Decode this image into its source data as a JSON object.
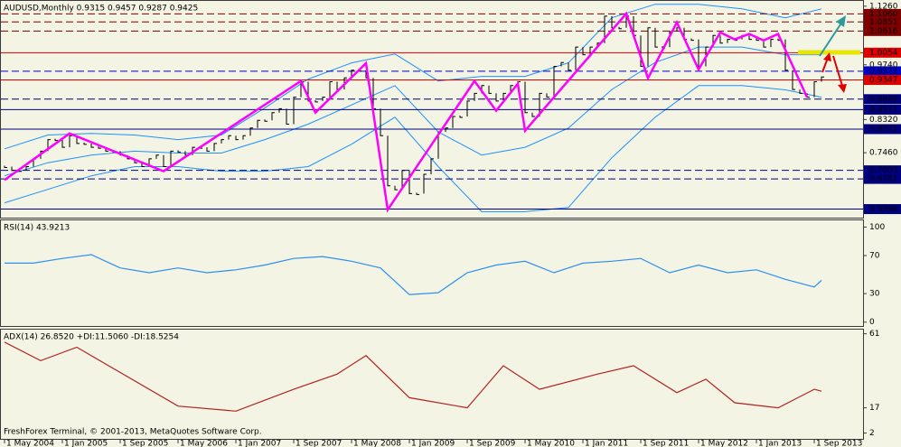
{
  "chart_data": [
    {
      "type": "ohlc",
      "title": "AUDUSD,Monthly 0.9315 0.9457 0.9287 0.9425",
      "color": "#000000",
      "x": [
        "2004-05-01",
        "2004-06-01",
        "2004-07-01",
        "2004-08-01",
        "2004-09-01",
        "2004-10-01",
        "2004-11-01",
        "2004-12-01",
        "2005-01-01",
        "2005-02-01",
        "2005-03-01",
        "2005-04-01",
        "2005-05-01",
        "2005-06-01",
        "2005-07-01",
        "2005-08-01",
        "2005-09-01",
        "2005-10-01",
        "2005-11-01",
        "2005-12-01",
        "2006-01-01",
        "2006-02-01",
        "2006-03-01",
        "2006-04-01",
        "2006-05-01",
        "2006-06-01",
        "2006-07-01",
        "2006-08-01",
        "2006-09-01",
        "2006-10-01",
        "2006-11-01",
        "2006-12-01",
        "2007-01-01",
        "2007-02-01",
        "2007-03-01",
        "2007-04-01",
        "2007-05-01",
        "2007-06-01",
        "2007-07-01",
        "2007-08-01",
        "2007-09-01",
        "2007-10-01",
        "2007-11-01",
        "2007-12-01",
        "2008-01-01",
        "2008-02-01",
        "2008-03-01",
        "2008-04-01",
        "2008-05-01",
        "2008-06-01",
        "2008-07-01",
        "2008-08-01",
        "2008-09-01",
        "2008-10-01",
        "2008-11-01",
        "2008-12-01",
        "2009-01-01",
        "2009-02-01",
        "2009-03-01",
        "2009-04-01",
        "2009-05-01",
        "2009-06-01",
        "2009-07-01",
        "2009-08-01",
        "2009-09-01",
        "2009-10-01",
        "2009-11-01",
        "2009-12-01",
        "2010-01-01",
        "2010-02-01",
        "2010-03-01",
        "2010-04-01",
        "2010-05-01",
        "2010-06-01",
        "2010-07-01",
        "2010-08-01",
        "2010-09-01",
        "2010-10-01",
        "2010-11-01",
        "2010-12-01",
        "2011-01-01",
        "2011-02-01",
        "2011-03-01",
        "2011-04-01",
        "2011-05-01",
        "2011-06-01",
        "2011-07-01",
        "2011-08-01",
        "2011-09-01",
        "2011-10-01",
        "2011-11-01",
        "2011-12-01",
        "2012-01-01",
        "2012-02-01",
        "2012-03-01",
        "2012-04-01",
        "2012-05-01",
        "2012-06-01",
        "2012-07-01",
        "2012-08-01",
        "2012-09-01",
        "2012-10-01",
        "2012-11-01",
        "2012-12-01",
        "2013-01-01",
        "2013-02-01",
        "2013-03-01",
        "2013-04-01",
        "2013-05-01",
        "2013-06-01",
        "2013-07-01",
        "2013-08-01",
        "2013-09-01",
        "2013-10-01"
      ],
      "values": [
        0.71,
        0.7,
        0.7,
        0.71,
        0.73,
        0.75,
        0.78,
        0.78,
        0.76,
        0.79,
        0.77,
        0.77,
        0.76,
        0.76,
        0.75,
        0.75,
        0.74,
        0.73,
        0.72,
        0.71,
        0.73,
        0.74,
        0.71,
        0.75,
        0.75,
        0.74,
        0.76,
        0.76,
        0.75,
        0.77,
        0.78,
        0.79,
        0.78,
        0.79,
        0.81,
        0.83,
        0.83,
        0.85,
        0.86,
        0.82,
        0.89,
        0.93,
        0.88,
        0.88,
        0.89,
        0.93,
        0.91,
        0.94,
        0.96,
        0.96,
        0.94,
        0.86,
        0.79,
        0.66,
        0.65,
        0.7,
        0.64,
        0.64,
        0.69,
        0.73,
        0.8,
        0.81,
        0.84,
        0.84,
        0.88,
        0.9,
        0.92,
        0.9,
        0.88,
        0.9,
        0.92,
        0.93,
        0.85,
        0.84,
        0.9,
        0.89,
        0.97,
        0.98,
        0.96,
        1.02,
        1.0,
        1.02,
        1.03,
        1.1,
        1.07,
        1.07,
        1.1,
        1.05,
        0.97,
        1.07,
        1.02,
        1.02,
        1.06,
        1.07,
        1.04,
        1.04,
        0.97,
        1.02,
        1.05,
        1.03,
        1.04,
        1.04,
        1.05,
        1.04,
        1.04,
        1.02,
        1.04,
        1.04,
        0.96,
        0.91,
        0.9,
        0.89,
        0.93,
        0.9425
      ],
      "xlim": [
        "2004-05-01",
        "2014-03-01"
      ],
      "ylim": [
        0.58,
        1.135
      ],
      "yticks": [
        {
          "value": 1.126,
          "label": "1.1260"
        },
        {
          "value": 0.974,
          "label": "0.9740"
        },
        {
          "value": 0.888,
          "label": "0.8880"
        },
        {
          "value": 0.832,
          "label": "0.8320"
        },
        {
          "value": 0.746,
          "label": "0.7460"
        }
      ],
      "levels": [
        {
          "value": 1.106,
          "label": "1.1060",
          "color": "#800000",
          "style": "dashed"
        },
        {
          "value": 1.0851,
          "color": "#800000",
          "style": "dashed"
        },
        {
          "value": 1.0616,
          "color": "#800000",
          "style": "dashed"
        },
        {
          "value": 1.0054,
          "color": "#e00000",
          "style": "solid"
        },
        {
          "value": 0.9572,
          "color": "#0000c8",
          "style": "dashed"
        },
        {
          "value": 0.9347,
          "color": "#e00000",
          "style": "solid"
        },
        {
          "value": 0.8849,
          "color": "#000080",
          "style": "dashed"
        },
        {
          "value": 0.8577,
          "color": "#000080",
          "style": "solid"
        },
        {
          "value": 0.8072,
          "color": "#000080",
          "style": "solid"
        },
        {
          "value": 0.7003,
          "color": "#000080",
          "style": "dashed"
        },
        {
          "value": 0.6781,
          "color": "#000080",
          "style": "dashed"
        },
        {
          "value": 0.5998,
          "color": "#000080",
          "style": "solid"
        }
      ],
      "zigzag": {
        "color": "#ff00ff",
        "x": [
          "2004-05-01",
          "2005-02-01",
          "2006-03-01",
          "2007-10-01",
          "2007-12-01",
          "2008-07-01",
          "2008-10-01",
          "2009-10-01",
          "2010-01-01",
          "2010-04-01",
          "2010-05-01",
          "2011-07-01",
          "2011-10-01",
          "2012-02-01",
          "2012-05-01",
          "2012-08-01",
          "2012-10-01",
          "2012-12-01",
          "2013-02-01",
          "2013-04-01",
          "2013-08-01"
        ],
        "values": [
          0.675,
          0.796,
          0.698,
          0.932,
          0.85,
          0.978,
          0.598,
          0.932,
          0.855,
          0.925,
          0.803,
          1.107,
          0.939,
          1.084,
          0.962,
          1.058,
          1.04,
          1.054,
          1.037,
          1.054,
          0.89
        ]
      },
      "bands": {
        "color": "#1e90ff",
        "x": [
          "2004-05-01",
          "2004-11-01",
          "2005-05-01",
          "2005-11-01",
          "2006-05-01",
          "2006-11-01",
          "2007-05-01",
          "2007-11-01",
          "2008-05-01",
          "2008-11-01",
          "2009-05-01",
          "2009-11-01",
          "2010-05-01",
          "2010-11-01",
          "2011-05-01",
          "2011-11-01",
          "2012-05-01",
          "2012-11-01",
          "2013-05-01",
          "2013-10-01"
        ],
        "upper": [
          0.756,
          0.792,
          0.796,
          0.792,
          0.78,
          0.792,
          0.862,
          0.937,
          0.979,
          1.002,
          0.932,
          0.944,
          0.944,
          0.979,
          1.096,
          1.131,
          1.131,
          1.119,
          1.096,
          1.119
        ],
        "middle": [
          0.686,
          0.72,
          0.74,
          0.75,
          0.745,
          0.745,
          0.78,
          0.82,
          0.87,
          0.92,
          0.8,
          0.74,
          0.76,
          0.81,
          0.91,
          0.98,
          1.02,
          1.02,
          1.0,
          1.0
        ],
        "lower": [
          0.616,
          0.651,
          0.686,
          0.71,
          0.71,
          0.698,
          0.698,
          0.71,
          0.768,
          0.838,
          0.71,
          0.593,
          0.593,
          0.604,
          0.733,
          0.838,
          0.92,
          0.92,
          0.909,
          0.89
        ]
      }
    },
    {
      "type": "line",
      "title": "RSI(14) 43.9213",
      "color": "#2f8ff0",
      "x": [
        "2004-05-01",
        "2004-09-01",
        "2005-01-01",
        "2005-05-01",
        "2005-09-01",
        "2006-01-01",
        "2006-05-01",
        "2006-09-01",
        "2007-01-01",
        "2007-05-01",
        "2007-09-01",
        "2008-01-01",
        "2008-05-01",
        "2008-09-01",
        "2009-01-01",
        "2009-05-01",
        "2009-09-01",
        "2010-01-01",
        "2010-05-01",
        "2010-09-01",
        "2011-01-01",
        "2011-05-01",
        "2011-09-01",
        "2012-01-01",
        "2012-05-01",
        "2012-09-01",
        "2013-01-01",
        "2013-05-01",
        "2013-09-01",
        "2013-10-01"
      ],
      "values": [
        62,
        62,
        67,
        71,
        57,
        52,
        57,
        52,
        55,
        60,
        67,
        69,
        64,
        57,
        29,
        31,
        52,
        60,
        64,
        52,
        62,
        64,
        67,
        52,
        60,
        52,
        55,
        45,
        37,
        43.9213
      ],
      "ylim": [
        -5,
        108
      ],
      "yticks": [
        100,
        70,
        30,
        0
      ]
    },
    {
      "type": "line",
      "title": "ADX(14) 26.8520 +DI:11.5060 -DI:18.5254",
      "color": "#b22222",
      "annotation": "FreshForex Terminal, © 2001-2013, MetaQuotes Software Corp.",
      "x": [
        "2004-05-01",
        "2004-10-01",
        "2005-03-01",
        "2006-05-01",
        "2007-01-01",
        "2007-09-01",
        "2008-03-01",
        "2008-07-01",
        "2009-01-01",
        "2009-09-01",
        "2010-02-01",
        "2010-07-01",
        "2011-03-01",
        "2011-08-01",
        "2012-02-01",
        "2012-06-01",
        "2012-10-01",
        "2013-04-01",
        "2013-09-01",
        "2013-10-01"
      ],
      "values": [
        56,
        45,
        53,
        18,
        15,
        28,
        37,
        48,
        23,
        17,
        42,
        28,
        37,
        42,
        26,
        34,
        20,
        17,
        28,
        26.852
      ],
      "ylim": [
        -2,
        64
      ],
      "yticks": [
        61,
        17,
        2
      ],
      "xticks": [
        {
          "value": "2004-05-01",
          "label": "1 May 2004"
        },
        {
          "value": "2005-01-01",
          "label": "1 Jan 2005"
        },
        {
          "value": "2005-09-01",
          "label": "1 Sep 2005"
        },
        {
          "value": "2006-05-01",
          "label": "1 May 2006"
        },
        {
          "value": "2007-01-01",
          "label": "1 Jan 2007"
        },
        {
          "value": "2007-09-01",
          "label": "1 Sep 2007"
        },
        {
          "value": "2008-05-01",
          "label": "1 May 2008"
        },
        {
          "value": "2009-01-01",
          "label": "1 Jan 2009"
        },
        {
          "value": "2009-09-01",
          "label": "1 Sep 2009"
        },
        {
          "value": "2010-05-01",
          "label": "1 May 2010"
        },
        {
          "value": "2011-01-01",
          "label": "1 Jan 2011"
        },
        {
          "value": "2011-09-01",
          "label": "1 Sep 2011"
        },
        {
          "value": "2012-05-01",
          "label": "1 May 2012"
        },
        {
          "value": "2013-01-01",
          "label": "1 Jan 2013"
        },
        {
          "value": "2013-09-01",
          "label": "1 Sep 2013"
        }
      ]
    }
  ]
}
